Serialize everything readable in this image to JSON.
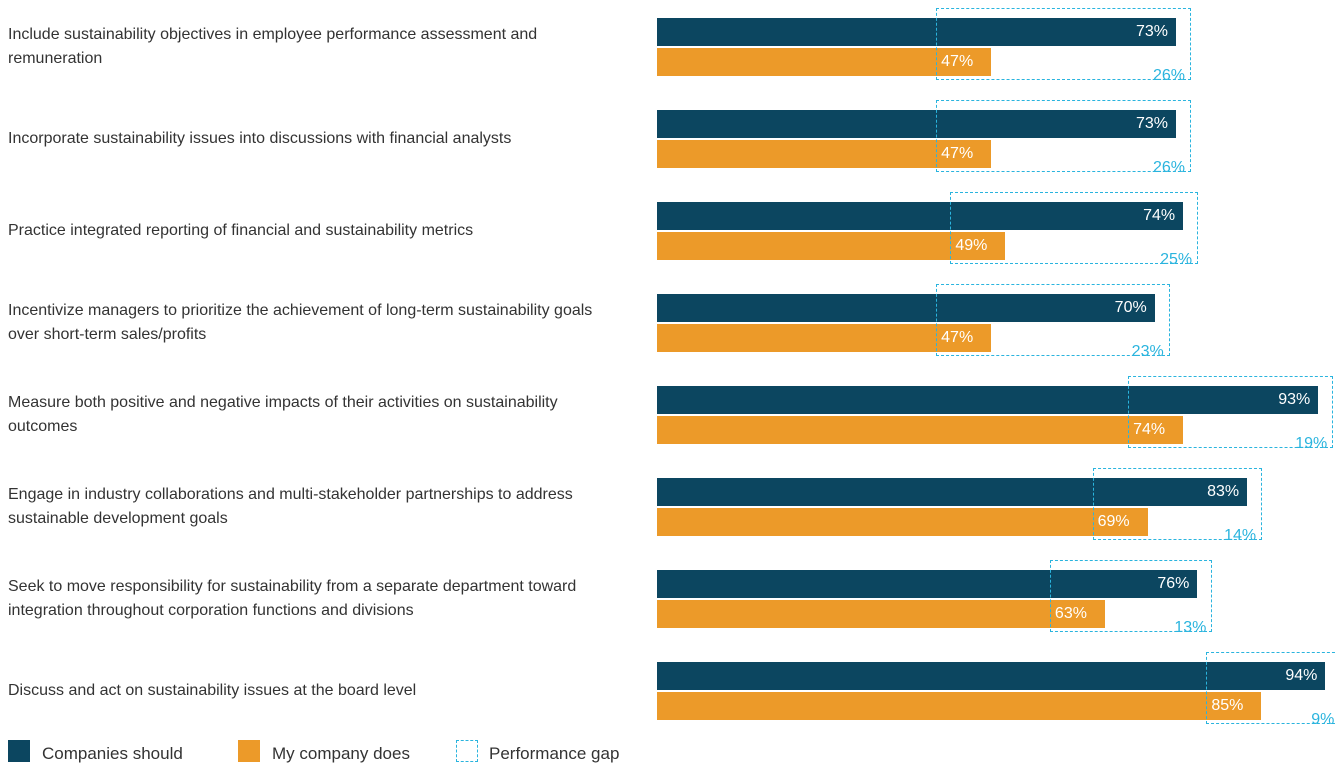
{
  "chart_data": {
    "type": "gap-bar",
    "categories": [
      "Include sustainability objectives in employee performance assessment and remuneration",
      "Incorporate sustainability issues into discussions with financial analysts",
      "Practice integrated reporting of financial and sustainability metrics",
      "Incentivize managers to prioritize the achievement of long-term sustainability goals over short-term sales/profits",
      "Measure both positive and negative impacts of their activities on sustainability outcomes",
      "Engage in industry collaborations and multi-stakeholder partnerships to address sustainable development goals",
      "Seek to move responsibility for sustainability from a separate department toward integration throughout corporation functions and divisions",
      "Discuss and act on sustainability issues at the board level"
    ],
    "series": [
      {
        "name": "Companies should",
        "color": "#0c4660",
        "values": [
          73,
          73,
          74,
          70,
          93,
          83,
          76,
          94
        ],
        "value_labels": [
          "73%",
          "73%",
          "74%",
          "70%",
          "93%",
          "83%",
          "76%",
          "94%"
        ]
      },
      {
        "name": "My company does",
        "color": "#ec9a29",
        "values": [
          47,
          47,
          49,
          47,
          74,
          69,
          63,
          85
        ],
        "value_labels": [
          "47%",
          "47%",
          "49%",
          "47%",
          "74%",
          "69%",
          "63%",
          "85%"
        ]
      },
      {
        "name": "Performance gap",
        "color": "#2ab4de",
        "values": [
          26,
          26,
          25,
          23,
          19,
          14,
          13,
          9
        ],
        "value_labels": [
          "26%",
          "26%",
          "25%",
          "23%",
          "19%",
          "14%",
          "13%",
          "9%"
        ]
      }
    ]
  }
}
